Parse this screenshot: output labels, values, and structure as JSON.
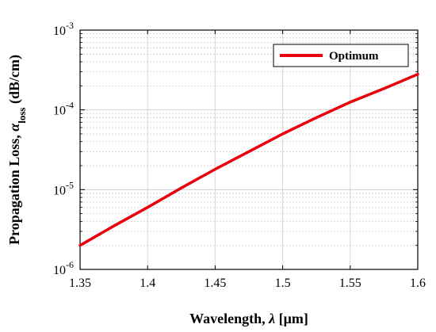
{
  "chart_data": {
    "type": "line",
    "title": "",
    "xlabel": "Wavelength, λ [μm]",
    "ylabel": "Propagation Loss, α_loss (dB/cm)",
    "ylabel_parts": {
      "prefix": "Propagation Loss, ",
      "symbol": "α",
      "subscript": "loss",
      "suffix": " (dB/cm)"
    },
    "xlabel_parts": {
      "prefix": "Wavelength, ",
      "symbol": "λ",
      "suffix": " [μm]"
    },
    "xlim": [
      1.35,
      1.6
    ],
    "ylim": [
      1e-06,
      0.001
    ],
    "yscale": "log",
    "x_ticks": [
      1.35,
      1.4,
      1.45,
      1.5,
      1.55,
      1.6
    ],
    "x_tick_labels": [
      "1.35",
      "1.4",
      "1.45",
      "1.5",
      "1.55",
      "1.6"
    ],
    "y_ticks": [
      {
        "base": "10",
        "exp": "-6",
        "value": 1e-06
      },
      {
        "base": "10",
        "exp": "-5",
        "value": 1e-05
      },
      {
        "base": "10",
        "exp": "-4",
        "value": 0.0001
      },
      {
        "base": "10",
        "exp": "-3",
        "value": 0.001
      }
    ],
    "grid": true,
    "legend_position": "top-right",
    "series": [
      {
        "name": "Optimum",
        "color": "#e8000b",
        "x": [
          1.35,
          1.375,
          1.4,
          1.425,
          1.45,
          1.475,
          1.5,
          1.525,
          1.55,
          1.575,
          1.6
        ],
        "y": [
          2e-06,
          3.5e-06,
          6e-06,
          1.05e-05,
          1.8e-05,
          3e-05,
          5e-05,
          8e-05,
          0.000125,
          0.000185,
          0.00028
        ]
      }
    ]
  }
}
